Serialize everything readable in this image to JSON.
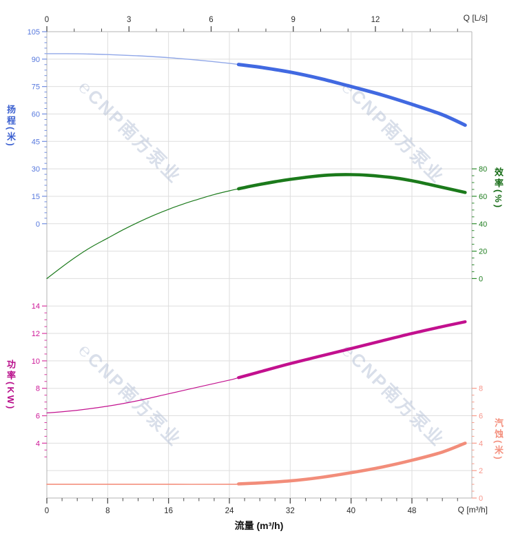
{
  "watermark": {
    "text": "℮CNP南方泵业"
  },
  "chart_data": {
    "type": "line",
    "title": "",
    "grid": true,
    "x_axis": {
      "label": "流量 (m³/h)",
      "corner_label": "Q [m³/h]",
      "ticks": [
        0,
        8,
        16,
        24,
        32,
        40,
        48
      ],
      "minor_step": 2,
      "range": [
        0,
        55.9
      ]
    },
    "x_axis_top": {
      "corner_label": "Q [L/s]",
      "ticks": [
        0,
        3,
        6,
        9,
        12
      ],
      "minor_step": 1,
      "range": [
        0,
        15.5
      ],
      "units_per_bottom_unit": 3.6
    },
    "y_axes": {
      "head": {
        "title": "扬程(米)",
        "side": "left",
        "color": "#6f8ce0",
        "label_color": "#5577dd",
        "ticks": [
          105,
          90,
          75,
          60,
          45,
          30,
          15,
          0
        ],
        "minor_step": 3,
        "top_value": 105,
        "bottom_value": 0,
        "top_row": 0,
        "bottom_row": 7
      },
      "eff": {
        "title": "效率(%)",
        "side": "right",
        "color": "#2a8a2a",
        "label_color": "#1e7d1e",
        "ticks": [
          80,
          60,
          40,
          20,
          0
        ],
        "minor_step": 5,
        "top_value": 80,
        "bottom_value": 0,
        "top_row": 5,
        "bottom_row": 9
      },
      "power": {
        "title": "功率(KW)",
        "side": "left",
        "color": "#d8359f",
        "label_color": "#cc1496",
        "ticks": [
          14,
          12,
          10,
          8,
          6,
          4
        ],
        "minor_step": 0.5,
        "extra_minors": [
          3.5,
          3
        ],
        "top_value": 14,
        "bottom_value": 4,
        "top_row": 10,
        "bottom_row": 15
      },
      "npsh": {
        "title": "汽蚀(米)",
        "side": "right",
        "color": "#f79a88",
        "label_color": "#f7958a",
        "ticks": [
          8,
          6,
          4,
          2,
          0
        ],
        "minor_step": 0.5,
        "top_value": 8,
        "bottom_value": 0,
        "top_row": 13,
        "bottom_row": 17
      }
    },
    "series": [
      {
        "name": "head-curve",
        "label": "扬程",
        "axis": "head",
        "color": "#4169E1",
        "thin_color": "#90a7e8",
        "width_thin": 1.4,
        "width_bold": 5,
        "bold_from": 25.2,
        "points": [
          [
            0,
            93
          ],
          [
            4,
            92.9
          ],
          [
            8,
            92.5
          ],
          [
            12,
            91.8
          ],
          [
            16,
            90.8
          ],
          [
            20,
            89.4
          ],
          [
            24,
            87.7
          ],
          [
            28,
            85.6
          ],
          [
            32,
            82.9
          ],
          [
            36,
            79.3
          ],
          [
            40,
            75.0
          ],
          [
            44,
            70.5
          ],
          [
            48,
            65.3
          ],
          [
            52,
            59.6
          ],
          [
            55,
            53.9
          ]
        ]
      },
      {
        "name": "efficiency-curve",
        "label": "效率",
        "axis": "eff",
        "color": "#1b7a1b",
        "thin_color": "#1b7a1b",
        "width_thin": 1.2,
        "width_bold": 4.6,
        "bold_from": 25.2,
        "points": [
          [
            0,
            0
          ],
          [
            2,
            8.5
          ],
          [
            4,
            16.5
          ],
          [
            6,
            23.5
          ],
          [
            8,
            29.5
          ],
          [
            10,
            35.5
          ],
          [
            12,
            41
          ],
          [
            14,
            46
          ],
          [
            16,
            50.5
          ],
          [
            18,
            54.5
          ],
          [
            20,
            58
          ],
          [
            22,
            61.3
          ],
          [
            24,
            64
          ],
          [
            26,
            66.4
          ],
          [
            28,
            68.6
          ],
          [
            30,
            70.6
          ],
          [
            32,
            72.3
          ],
          [
            34,
            73.8
          ],
          [
            36,
            75
          ],
          [
            38,
            75.7
          ],
          [
            40,
            75.8
          ],
          [
            42,
            75.4
          ],
          [
            44,
            74.5
          ],
          [
            46,
            73.2
          ],
          [
            48,
            71.3
          ],
          [
            50,
            69
          ],
          [
            52,
            66.5
          ],
          [
            55,
            62.8
          ]
        ]
      },
      {
        "name": "power-curve",
        "label": "功率",
        "axis": "power",
        "color": "#c2108e",
        "thin_color": "#c2108e",
        "width_thin": 1.2,
        "width_bold": 4.4,
        "bold_from": 25.2,
        "points": [
          [
            0,
            6.2
          ],
          [
            4,
            6.4
          ],
          [
            8,
            6.7
          ],
          [
            12,
            7.1
          ],
          [
            16,
            7.6
          ],
          [
            20,
            8.1
          ],
          [
            24,
            8.6
          ],
          [
            28,
            9.2
          ],
          [
            32,
            9.8
          ],
          [
            36,
            10.35
          ],
          [
            40,
            10.9
          ],
          [
            44,
            11.45
          ],
          [
            48,
            12.0
          ],
          [
            52,
            12.5
          ],
          [
            55,
            12.85
          ]
        ]
      },
      {
        "name": "npsh-curve",
        "label": "汽蚀",
        "axis": "npsh",
        "color": "#f28d7a",
        "thin_color": "#f4907e",
        "width_thin": 1.6,
        "width_bold": 4.6,
        "bold_from": 25.2,
        "points": [
          [
            0,
            1.0
          ],
          [
            8,
            1.0
          ],
          [
            16,
            1.0
          ],
          [
            24,
            1.0
          ],
          [
            28,
            1.1
          ],
          [
            32,
            1.25
          ],
          [
            36,
            1.5
          ],
          [
            40,
            1.85
          ],
          [
            44,
            2.25
          ],
          [
            48,
            2.75
          ],
          [
            52,
            3.35
          ],
          [
            55,
            4.0
          ]
        ]
      }
    ]
  }
}
